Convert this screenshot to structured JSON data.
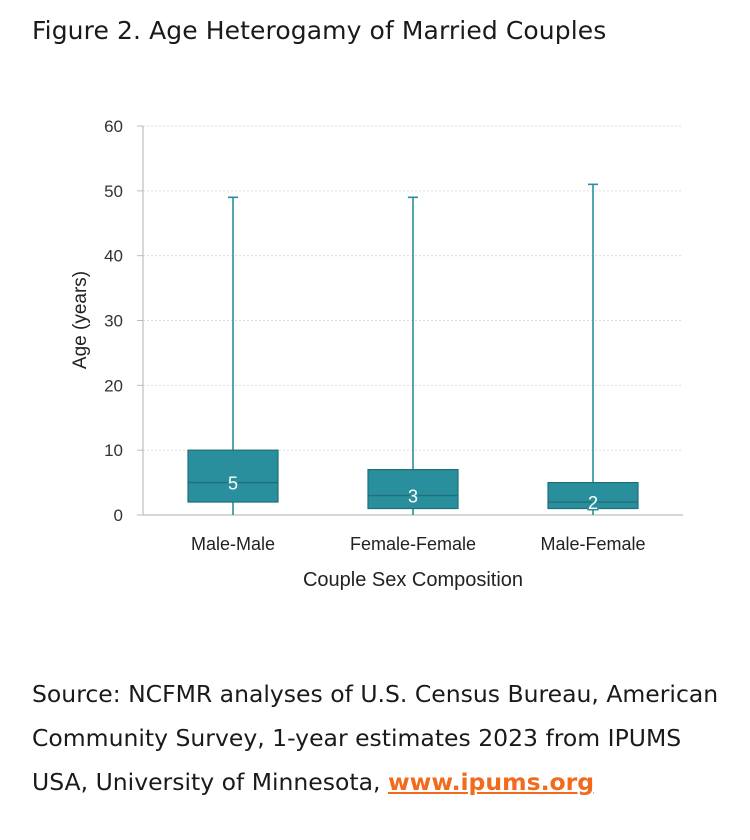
{
  "figure": {
    "title": "Figure 2. Age Heterogamy of Married Couples"
  },
  "chart_data": {
    "type": "box",
    "xlabel": "Couple Sex Composition",
    "ylabel": "Age (years)",
    "ylim": [
      0,
      60
    ],
    "yticks": [
      0,
      10,
      20,
      30,
      40,
      50,
      60
    ],
    "grid": true,
    "categories": [
      "Male-Male",
      "Female-Female",
      "Male-Female"
    ],
    "boxes": [
      {
        "category": "Male-Male",
        "min": 0,
        "q1": 2,
        "median": 5,
        "q3": 10,
        "max": 49,
        "label": "5"
      },
      {
        "category": "Female-Female",
        "min": 0,
        "q1": 1,
        "median": 3,
        "q3": 7,
        "max": 49,
        "label": "3"
      },
      {
        "category": "Male-Female",
        "min": 0,
        "q1": 1,
        "median": 2,
        "q3": 5,
        "max": 51,
        "label": "2"
      }
    ],
    "colors": {
      "box_fill": "#2a8f9c",
      "box_stroke": "#1f6f78",
      "whisker": "#2a8f9c",
      "median_label": "#ffffff"
    }
  },
  "source": {
    "text": "Source: NCFMR analyses of U.S. Census Bureau, American Community Survey, 1-year estimates 2023 from IPUMS USA, University of Minnesota, ",
    "link_text": "www.ipums.org"
  }
}
